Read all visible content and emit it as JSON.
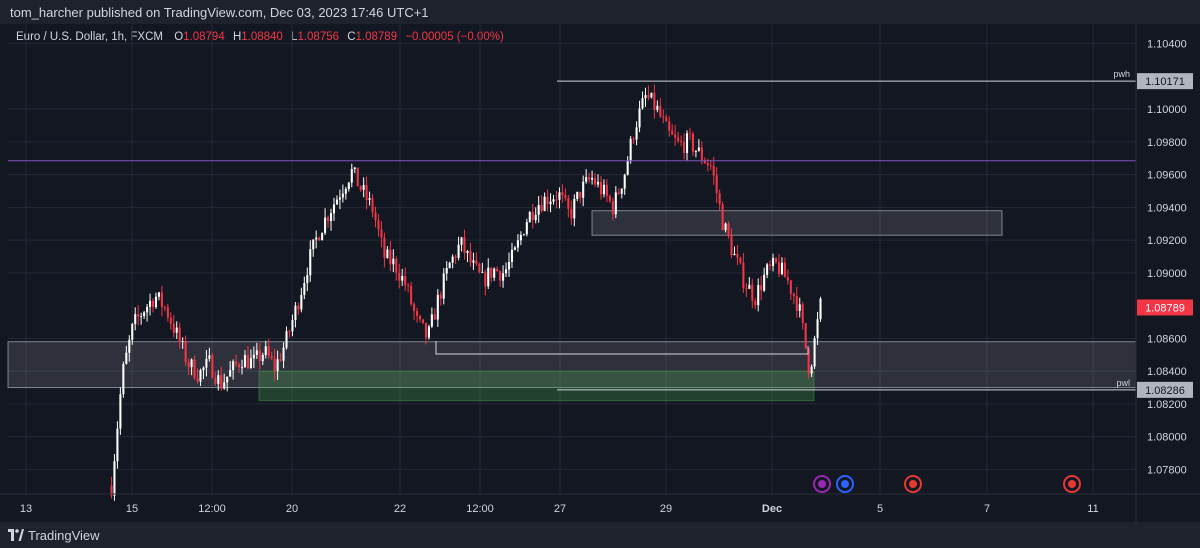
{
  "header": {
    "publisher": "tom_harcher published on TradingView.com, Dec 03, 2023 17:46 UTC+1"
  },
  "legend": {
    "symbol": "Euro / U.S. Dollar, 1h, FXCM",
    "open_label": "O",
    "open": "1.08794",
    "high_label": "H",
    "high": "1.08840",
    "low_label": "L",
    "low": "1.08756",
    "close_label": "C",
    "close": "1.08789",
    "change": "−0.00005 (−0.00%)"
  },
  "chart_data": {
    "type": "candlestick",
    "title": "Euro / U.S. Dollar, 1h, FXCM",
    "ylim": [
      1.0765,
      1.1052
    ],
    "y_ticks": [
      "1.10400",
      "1.10000",
      "1.09800",
      "1.09600",
      "1.09400",
      "1.09200",
      "1.09000",
      "1.08600",
      "1.08400",
      "1.08200",
      "1.08000",
      "1.07800"
    ],
    "x_ticks": [
      "13",
      "15",
      "12:00",
      "20",
      "22",
      "12:00",
      "27",
      "29",
      "Dec",
      "5",
      "7",
      "11"
    ],
    "price_path": [
      [
        0,
        1.077
      ],
      [
        1,
        1.0838
      ],
      [
        2,
        1.0868
      ],
      [
        3,
        1.0878
      ],
      [
        4,
        1.0886
      ],
      [
        5,
        1.0878
      ],
      [
        6,
        1.0862
      ],
      [
        7,
        1.0845
      ],
      [
        8,
        1.0838
      ],
      [
        9,
        1.0845
      ],
      [
        10,
        1.0832
      ],
      [
        11,
        1.084
      ],
      [
        12,
        1.0848
      ],
      [
        13,
        1.0845
      ],
      [
        14,
        1.0852
      ],
      [
        15,
        1.0842
      ],
      [
        16,
        1.0858
      ],
      [
        17,
        1.088
      ],
      [
        18,
        1.0905
      ],
      [
        19,
        1.0925
      ],
      [
        20,
        1.0938
      ],
      [
        21,
        1.095
      ],
      [
        22,
        1.0962
      ],
      [
        23,
        1.095
      ],
      [
        24,
        1.0938
      ],
      [
        25,
        1.091
      ],
      [
        26,
        1.0905
      ],
      [
        27,
        1.0892
      ],
      [
        28,
        1.087
      ],
      [
        29,
        1.086
      ],
      [
        30,
        1.0885
      ],
      [
        31,
        1.0905
      ],
      [
        32,
        1.0918
      ],
      [
        33,
        1.0905
      ],
      [
        34,
        1.0895
      ],
      [
        35,
        1.0902
      ],
      [
        36,
        1.09
      ],
      [
        37,
        1.0912
      ],
      [
        38,
        1.0932
      ],
      [
        39,
        1.0942
      ],
      [
        40,
        1.0946
      ],
      [
        41,
        1.0948
      ],
      [
        42,
        1.0935
      ],
      [
        43,
        1.095
      ],
      [
        44,
        1.0958
      ],
      [
        45,
        1.095
      ],
      [
        46,
        1.094
      ],
      [
        47,
        1.096
      ],
      [
        48,
        1.099
      ],
      [
        49,
        1.1008
      ],
      [
        50,
        1.1
      ],
      [
        51,
        1.0985
      ],
      [
        52,
        1.0978
      ],
      [
        53,
        1.098
      ],
      [
        54,
        1.0972
      ],
      [
        55,
        1.0965
      ],
      [
        56,
        1.0932
      ],
      [
        57,
        1.0912
      ],
      [
        58,
        1.0895
      ],
      [
        59,
        1.0885
      ],
      [
        60,
        1.09
      ],
      [
        61,
        1.0905
      ],
      [
        62,
        1.0895
      ],
      [
        63,
        1.088
      ],
      [
        64,
        1.084
      ],
      [
        65,
        1.088
      ]
    ],
    "candle_count": 240,
    "levels": [
      {
        "label": "pwh",
        "price": 1.10171,
        "price_label": "1.10171"
      },
      {
        "label": "pwl",
        "price": 1.08286,
        "price_label": "1.08286"
      }
    ],
    "last_price": {
      "price": 1.08789,
      "price_label": "1.08789"
    },
    "horizontal_line": {
      "price": 1.09685,
      "color": "#7e57c2"
    },
    "zones": [
      {
        "from_x": 0,
        "to_x": 1.0,
        "top": 1.0858,
        "bottom": 1.083,
        "color": "#d1d4dc"
      },
      {
        "from_x": 0.24,
        "to_x": 0.73,
        "top": 1.084,
        "bottom": 1.0822,
        "color": "#4caf50"
      },
      {
        "from_x": 0.525,
        "to_x": 0.895,
        "top": 1.0938,
        "bottom": 1.0923,
        "color": "#d1d4dc"
      }
    ],
    "colors": {
      "up": "#ffffff",
      "down": "#f23645",
      "background": "#131722",
      "grid": "#252936",
      "text": "#d1d4dc"
    }
  },
  "footer": {
    "brand": "TradingView"
  }
}
